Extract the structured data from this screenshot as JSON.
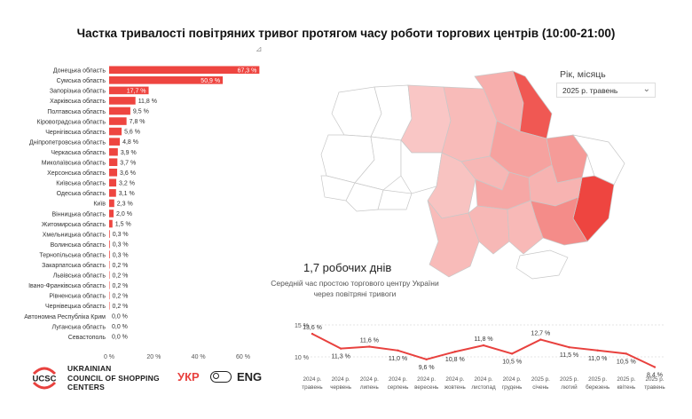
{
  "title": "Частка тривалості повітряних тривог протягом часу роботи торгових центрів (10:00-21:00)",
  "filter": {
    "label": "Рік, місяць",
    "selected": "2025 р. травень"
  },
  "kpi": {
    "value": "1,7 робочих днів",
    "description": "Середній час простою торгового центру України через повітряні тривоги"
  },
  "brand": {
    "logo_text": "UCSC",
    "name_line1": "UKRAINIAN",
    "name_line2": "COUNCIL OF SHOPPING",
    "name_line3": "CENTERS"
  },
  "language": {
    "ukr": "УКР",
    "eng": "ENG",
    "active": "ukr"
  },
  "colors": {
    "accent": "#ee4540",
    "line": "#e8413e",
    "map_high": "#ee4540",
    "map_low": "#fbe3e2"
  },
  "icons": {
    "resize": "resize-handle-icon",
    "dropdown": "chevron-down-icon",
    "toggle": "toggle-icon"
  },
  "chart_data": [
    {
      "type": "bar",
      "orientation": "horizontal",
      "categories": [
        "Донецька область",
        "Сумська область",
        "Запорізька область",
        "Харківська область",
        "Полтавська область",
        "Кіровоградська область",
        "Чернігівська область",
        "Дніпропетровська область",
        "Черкаська область",
        "Миколаївська область",
        "Херсонська область",
        "Київська область",
        "Одеська область",
        "Київ",
        "Вінницька область",
        "Житомирська область",
        "Хмельницька область",
        "Волинська область",
        "Тернопільська область",
        "Закарпатська область",
        "Львівська область",
        "Івано-Франківська область",
        "Рівненська область",
        "Чернівецька область",
        "Автономна Республіка Крим",
        "Луганська область",
        "Севастополь"
      ],
      "values": [
        67.3,
        50.9,
        17.7,
        11.8,
        9.5,
        7.8,
        5.6,
        4.8,
        3.9,
        3.7,
        3.6,
        3.2,
        3.1,
        2.3,
        2.0,
        1.5,
        0.3,
        0.3,
        0.3,
        0.2,
        0.2,
        0.2,
        0.2,
        0.2,
        0.0,
        0.0,
        0.0
      ],
      "value_labels": [
        "67,3 %",
        "50,9 %",
        "17,7 %",
        "11,8 %",
        "9,5 %",
        "7,8 %",
        "5,6 %",
        "4,8 %",
        "3,9 %",
        "3,7 %",
        "3,6 %",
        "3,2 %",
        "3,1 %",
        "2,3 %",
        "2,0 %",
        "1,5 %",
        "0,3 %",
        "0,3 %",
        "0,3 %",
        "0,2 %",
        "0,2 %",
        "0,2 %",
        "0,2 %",
        "0,2 %",
        "0,0 %",
        "0,0 %",
        "0,0 %"
      ],
      "xlim": [
        0,
        60
      ],
      "xticks": [
        0,
        20,
        40,
        60
      ],
      "xtick_labels": [
        "0 %",
        "20 %",
        "40 %",
        "60 %"
      ],
      "color": "#ee4540"
    },
    {
      "type": "line",
      "categories": [
        "2024 р. травень",
        "2024 р. червень",
        "2024 р. липень",
        "2024 р. серпень",
        "2024 р. вересень",
        "2024 р. жовтень",
        "2024 р. листопад",
        "2024 р. грудень",
        "2025 р. січень",
        "2025 р. лютий",
        "2025 р. березень",
        "2025 р. квітень",
        "2025 р. травень"
      ],
      "values": [
        13.6,
        11.3,
        11.6,
        11.0,
        9.6,
        10.8,
        11.8,
        10.5,
        12.7,
        11.5,
        11.0,
        10.5,
        8.4
      ],
      "value_labels": [
        "13,6 %",
        "11,3 %",
        "11,6 %",
        "11,0 %",
        "9,6 %",
        "10,8 %",
        "11,8 %",
        "10,5 %",
        "12,7 %",
        "11,5 %",
        "11,0 %",
        "10,5 %",
        "8,4 %"
      ],
      "yticks": [
        10,
        15
      ],
      "ytick_labels": [
        "10 %",
        "15 %"
      ],
      "ylim": [
        7.5,
        15
      ],
      "color": "#e8413e"
    },
    {
      "type": "choropleth",
      "regions": [
        {
          "name": "Донецька область",
          "value": 67.3
        },
        {
          "name": "Сумська область",
          "value": 50.9
        },
        {
          "name": "Запорізька область",
          "value": 17.7
        },
        {
          "name": "Харківська область",
          "value": 11.8
        },
        {
          "name": "Полтавська область",
          "value": 9.5
        },
        {
          "name": "Кіровоградська область",
          "value": 7.8
        },
        {
          "name": "Чернігівська область",
          "value": 5.6
        },
        {
          "name": "Дніпропетровська область",
          "value": 4.8
        },
        {
          "name": "Черкаська область",
          "value": 3.9
        },
        {
          "name": "Миколаївська область",
          "value": 3.7
        },
        {
          "name": "Херсонська область",
          "value": 3.6
        },
        {
          "name": "Київська область",
          "value": 3.2
        },
        {
          "name": "Одеська область",
          "value": 3.1
        },
        {
          "name": "Вінницька область",
          "value": 2.0
        },
        {
          "name": "Житомирська область",
          "value": 1.5
        },
        {
          "name": "Хмельницька область",
          "value": 0.3
        },
        {
          "name": "Волинська область",
          "value": 0.3
        },
        {
          "name": "Тернопільська область",
          "value": 0.3
        },
        {
          "name": "Закарпатська область",
          "value": 0.2
        },
        {
          "name": "Львівська область",
          "value": 0.2
        },
        {
          "name": "Івано-Франківська область",
          "value": 0.2
        },
        {
          "name": "Рівненська область",
          "value": 0.2
        },
        {
          "name": "Чернівецька область",
          "value": 0.2
        },
        {
          "name": "Автономна Республіка Крим",
          "value": 0.0
        },
        {
          "name": "Луганська область",
          "value": 0.0
        }
      ]
    }
  ]
}
